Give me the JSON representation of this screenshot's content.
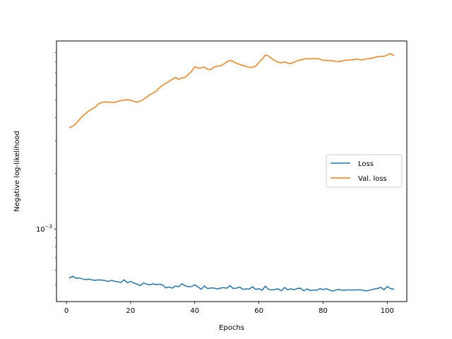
{
  "chart_data": {
    "type": "line",
    "title": "",
    "xlabel": "Epochs",
    "ylabel": "Negative log-likelihood",
    "xlim": [
      -3.1,
      106.1
    ],
    "ylim": [
      0.000405,
      0.0104
    ],
    "yscale": "log",
    "xticks": [
      0,
      20,
      40,
      60,
      80,
      100
    ],
    "xtick_labels": [
      "0",
      "20",
      "40",
      "60",
      "80",
      "100"
    ],
    "yticks": [
      0.001
    ],
    "ytick_labels": [
      "10",
      "−3"
    ],
    "legend_position": "center-right",
    "grid": false,
    "series": [
      {
        "name": "Loss",
        "color": "#1f77b4",
        "x": [
          1,
          2,
          3,
          4,
          5,
          6,
          7,
          8,
          9,
          10,
          11,
          12,
          13,
          14,
          15,
          16,
          17,
          18,
          19,
          20,
          21,
          22,
          23,
          24,
          25,
          26,
          27,
          28,
          29,
          30,
          31,
          32,
          33,
          34,
          35,
          36,
          37,
          38,
          39,
          40,
          41,
          42,
          43,
          44,
          45,
          46,
          47,
          48,
          49,
          50,
          51,
          52,
          53,
          54,
          55,
          56,
          57,
          58,
          59,
          60,
          61,
          62,
          63,
          64,
          65,
          66,
          67,
          68,
          69,
          70,
          71,
          72,
          73,
          74,
          75,
          76,
          77,
          78,
          79,
          80,
          81,
          82,
          83,
          84,
          85,
          86,
          87,
          88,
          89,
          90,
          91,
          92,
          93,
          94,
          95,
          96,
          97,
          98,
          99,
          100,
          101,
          102
        ],
        "y": [
          0.000544,
          0.000555,
          0.000541,
          0.000543,
          0.000537,
          0.000532,
          0.000536,
          0.00053,
          0.000528,
          0.000531,
          0.000529,
          0.000527,
          0.00052,
          0.000527,
          0.000522,
          0.000518,
          0.000514,
          0.000531,
          0.000512,
          0.000521,
          0.00051,
          0.000503,
          0.000494,
          0.000511,
          0.000503,
          0.000499,
          0.000505,
          0.0005,
          0.000503,
          0.000498,
          0.00048,
          0.000486,
          0.000479,
          0.000492,
          0.000487,
          0.000506,
          0.000493,
          0.000487,
          0.000488,
          0.000499,
          0.000486,
          0.000472,
          0.000492,
          0.000476,
          0.00048,
          0.000479,
          0.000474,
          0.000479,
          0.000482,
          0.000478,
          0.000494,
          0.000476,
          0.000479,
          0.000485,
          0.000472,
          0.000474,
          0.000473,
          0.000487,
          0.000471,
          0.000476,
          0.000466,
          0.000491,
          0.000471,
          0.000468,
          0.000471,
          0.000475,
          0.000463,
          0.000483,
          0.000469,
          0.000475,
          0.000469,
          0.000477,
          0.000478,
          0.000463,
          0.000474,
          0.000465,
          0.000467,
          0.000466,
          0.000476,
          0.00047,
          0.000475,
          0.000468,
          0.000461,
          0.000468,
          0.000471,
          0.000466,
          0.000467,
          0.000469,
          0.000467,
          0.000468,
          0.000469,
          0.000468,
          0.000463,
          0.000464,
          0.000469,
          0.000474,
          0.000477,
          0.000483,
          0.000469,
          0.000489,
          0.000476,
          0.000473
        ]
      },
      {
        "name": "Val. loss",
        "color": "#ff7f0e",
        "x": [
          1,
          2,
          3,
          4,
          5,
          6,
          7,
          8,
          9,
          10,
          11,
          12,
          13,
          14,
          15,
          16,
          17,
          18,
          19,
          20,
          21,
          22,
          23,
          24,
          25,
          26,
          27,
          28,
          29,
          30,
          31,
          32,
          33,
          34,
          35,
          36,
          37,
          38,
          39,
          40,
          41,
          42,
          43,
          44,
          45,
          46,
          47,
          48,
          49,
          50,
          51,
          52,
          53,
          54,
          55,
          56,
          57,
          58,
          59,
          60,
          61,
          62,
          63,
          64,
          65,
          66,
          67,
          68,
          69,
          70,
          71,
          72,
          73,
          74,
          75,
          76,
          77,
          78,
          79,
          80,
          81,
          82,
          83,
          84,
          85,
          86,
          87,
          88,
          89,
          90,
          91,
          92,
          93,
          94,
          95,
          96,
          97,
          98,
          99,
          100,
          101,
          102
        ],
        "y": [
          0.00354,
          0.0036,
          0.00372,
          0.0039,
          0.00407,
          0.00421,
          0.00436,
          0.00445,
          0.00457,
          0.00476,
          0.00483,
          0.00487,
          0.00485,
          0.00486,
          0.00484,
          0.0049,
          0.00495,
          0.00498,
          0.005,
          0.00498,
          0.0049,
          0.00486,
          0.00491,
          0.00503,
          0.00516,
          0.00532,
          0.00543,
          0.00557,
          0.00581,
          0.00599,
          0.00614,
          0.00629,
          0.00645,
          0.00661,
          0.00645,
          0.00657,
          0.00661,
          0.00685,
          0.00713,
          0.00754,
          0.00742,
          0.00744,
          0.00751,
          0.0073,
          0.00729,
          0.0075,
          0.00761,
          0.00762,
          0.00779,
          0.00801,
          0.00817,
          0.00805,
          0.00788,
          0.00777,
          0.00767,
          0.00757,
          0.00749,
          0.00748,
          0.0076,
          0.00796,
          0.0083,
          0.00872,
          0.00863,
          0.00835,
          0.00813,
          0.00798,
          0.00793,
          0.00802,
          0.00789,
          0.00785,
          0.00798,
          0.00813,
          0.00822,
          0.00828,
          0.00836,
          0.00832,
          0.00836,
          0.00834,
          0.0083,
          0.00817,
          0.00816,
          0.00813,
          0.00813,
          0.00806,
          0.00803,
          0.00813,
          0.00817,
          0.00821,
          0.00821,
          0.00827,
          0.00827,
          0.00822,
          0.00827,
          0.00835,
          0.00838,
          0.00846,
          0.00855,
          0.00858,
          0.00858,
          0.00874,
          0.00888,
          0.00868
        ]
      }
    ]
  }
}
